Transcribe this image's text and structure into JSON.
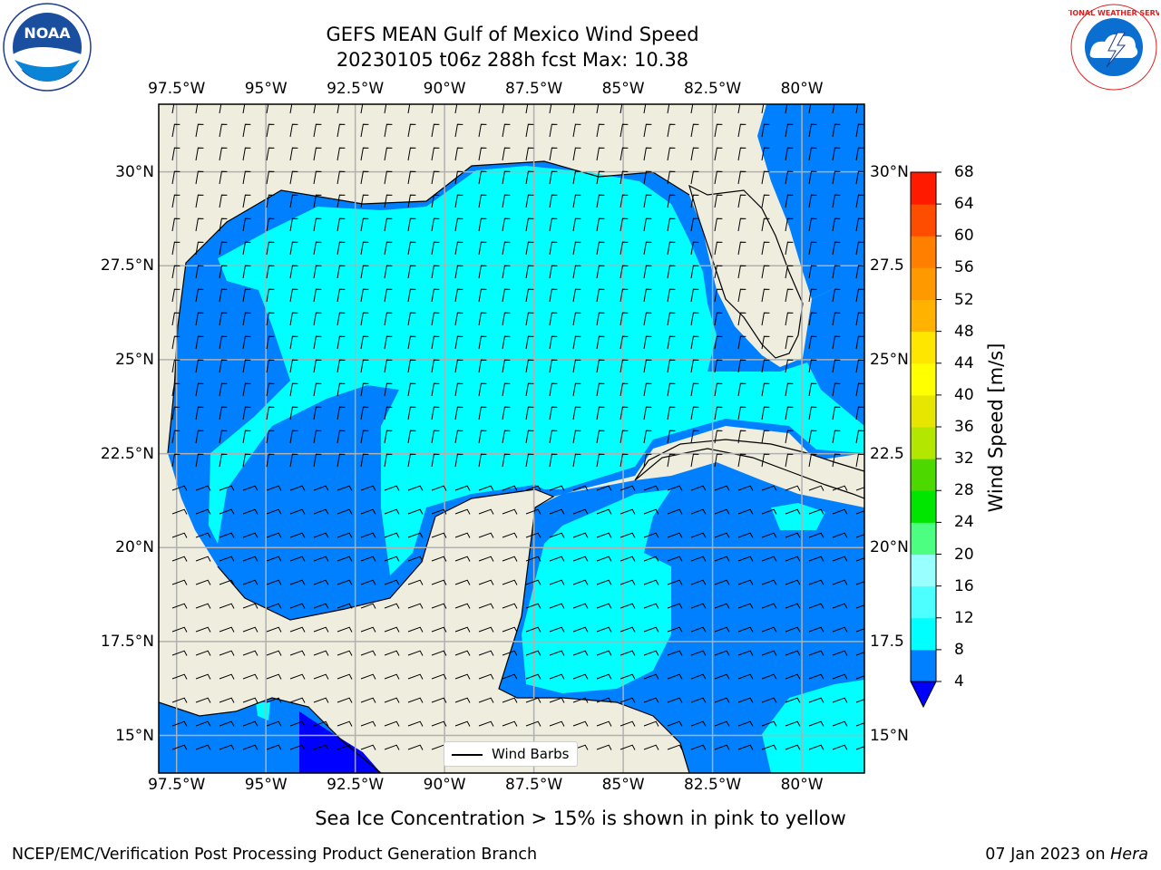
{
  "title": "GEFS MEAN Gulf of Mexico Wind Speed",
  "subtitle": "20230105 t06z 288h fcst   Max: 10.38",
  "longitude_ticks": [
    {
      "label": "97.5°W",
      "lon": -97.5
    },
    {
      "label": "95°W",
      "lon": -95.0
    },
    {
      "label": "92.5°W",
      "lon": -92.5
    },
    {
      "label": "90°W",
      "lon": -90.0
    },
    {
      "label": "87.5°W",
      "lon": -87.5
    },
    {
      "label": "85°W",
      "lon": -85.0
    },
    {
      "label": "82.5°W",
      "lon": -82.5
    },
    {
      "label": "80°W",
      "lon": -80.0
    }
  ],
  "latitude_ticks": [
    {
      "label": "30°N",
      "right_label": "30°N",
      "lat": 30.0
    },
    {
      "label": "27.5°N",
      "right_label": "27.5",
      "lat": 27.5
    },
    {
      "label": "25°N",
      "right_label": "25°N",
      "lat": 25.0
    },
    {
      "label": "22.5°N",
      "right_label": "22.5",
      "lat": 22.5
    },
    {
      "label": "20°N",
      "right_label": "20°N",
      "lat": 20.0
    },
    {
      "label": "17.5°N",
      "right_label": "17.5",
      "lat": 17.5
    },
    {
      "label": "15°N",
      "right_label": "15°N",
      "lat": 15.0
    }
  ],
  "map_extent": {
    "lon_min": -98,
    "lon_max": -78.25,
    "lat_min": 14,
    "lat_max": 31.8
  },
  "colorbar": {
    "label": "Wind Speed [m/s]",
    "ticks": [
      "4",
      "8",
      "12",
      "16",
      "20",
      "24",
      "28",
      "32",
      "36",
      "40",
      "44",
      "48",
      "52",
      "56",
      "60",
      "64",
      "68"
    ],
    "colors": [
      "#0080ff",
      "#00ffff",
      "#4dffff",
      "#99ffff",
      "#4dff80",
      "#00e600",
      "#4dd900",
      "#b3e600",
      "#e6e600",
      "#ffff00",
      "#ffe600",
      "#ffb300",
      "#ff9900",
      "#ff8000",
      "#ff4d00",
      "#ff1a00"
    ],
    "under_color": "#0000ff"
  },
  "legend": {
    "label": "Wind Barbs"
  },
  "land_color": "#efedde",
  "footer_note": "Sea Ice Concentration > 15% is shown in pink to yellow",
  "credit": "NCEP/EMC/Verification Post Processing Product Generation Branch",
  "date": "07 Jan 2023 on",
  "host": "Hera",
  "logos": {
    "left": "NOAA",
    "right": "NATIONAL WEATHER SERVICE"
  }
}
